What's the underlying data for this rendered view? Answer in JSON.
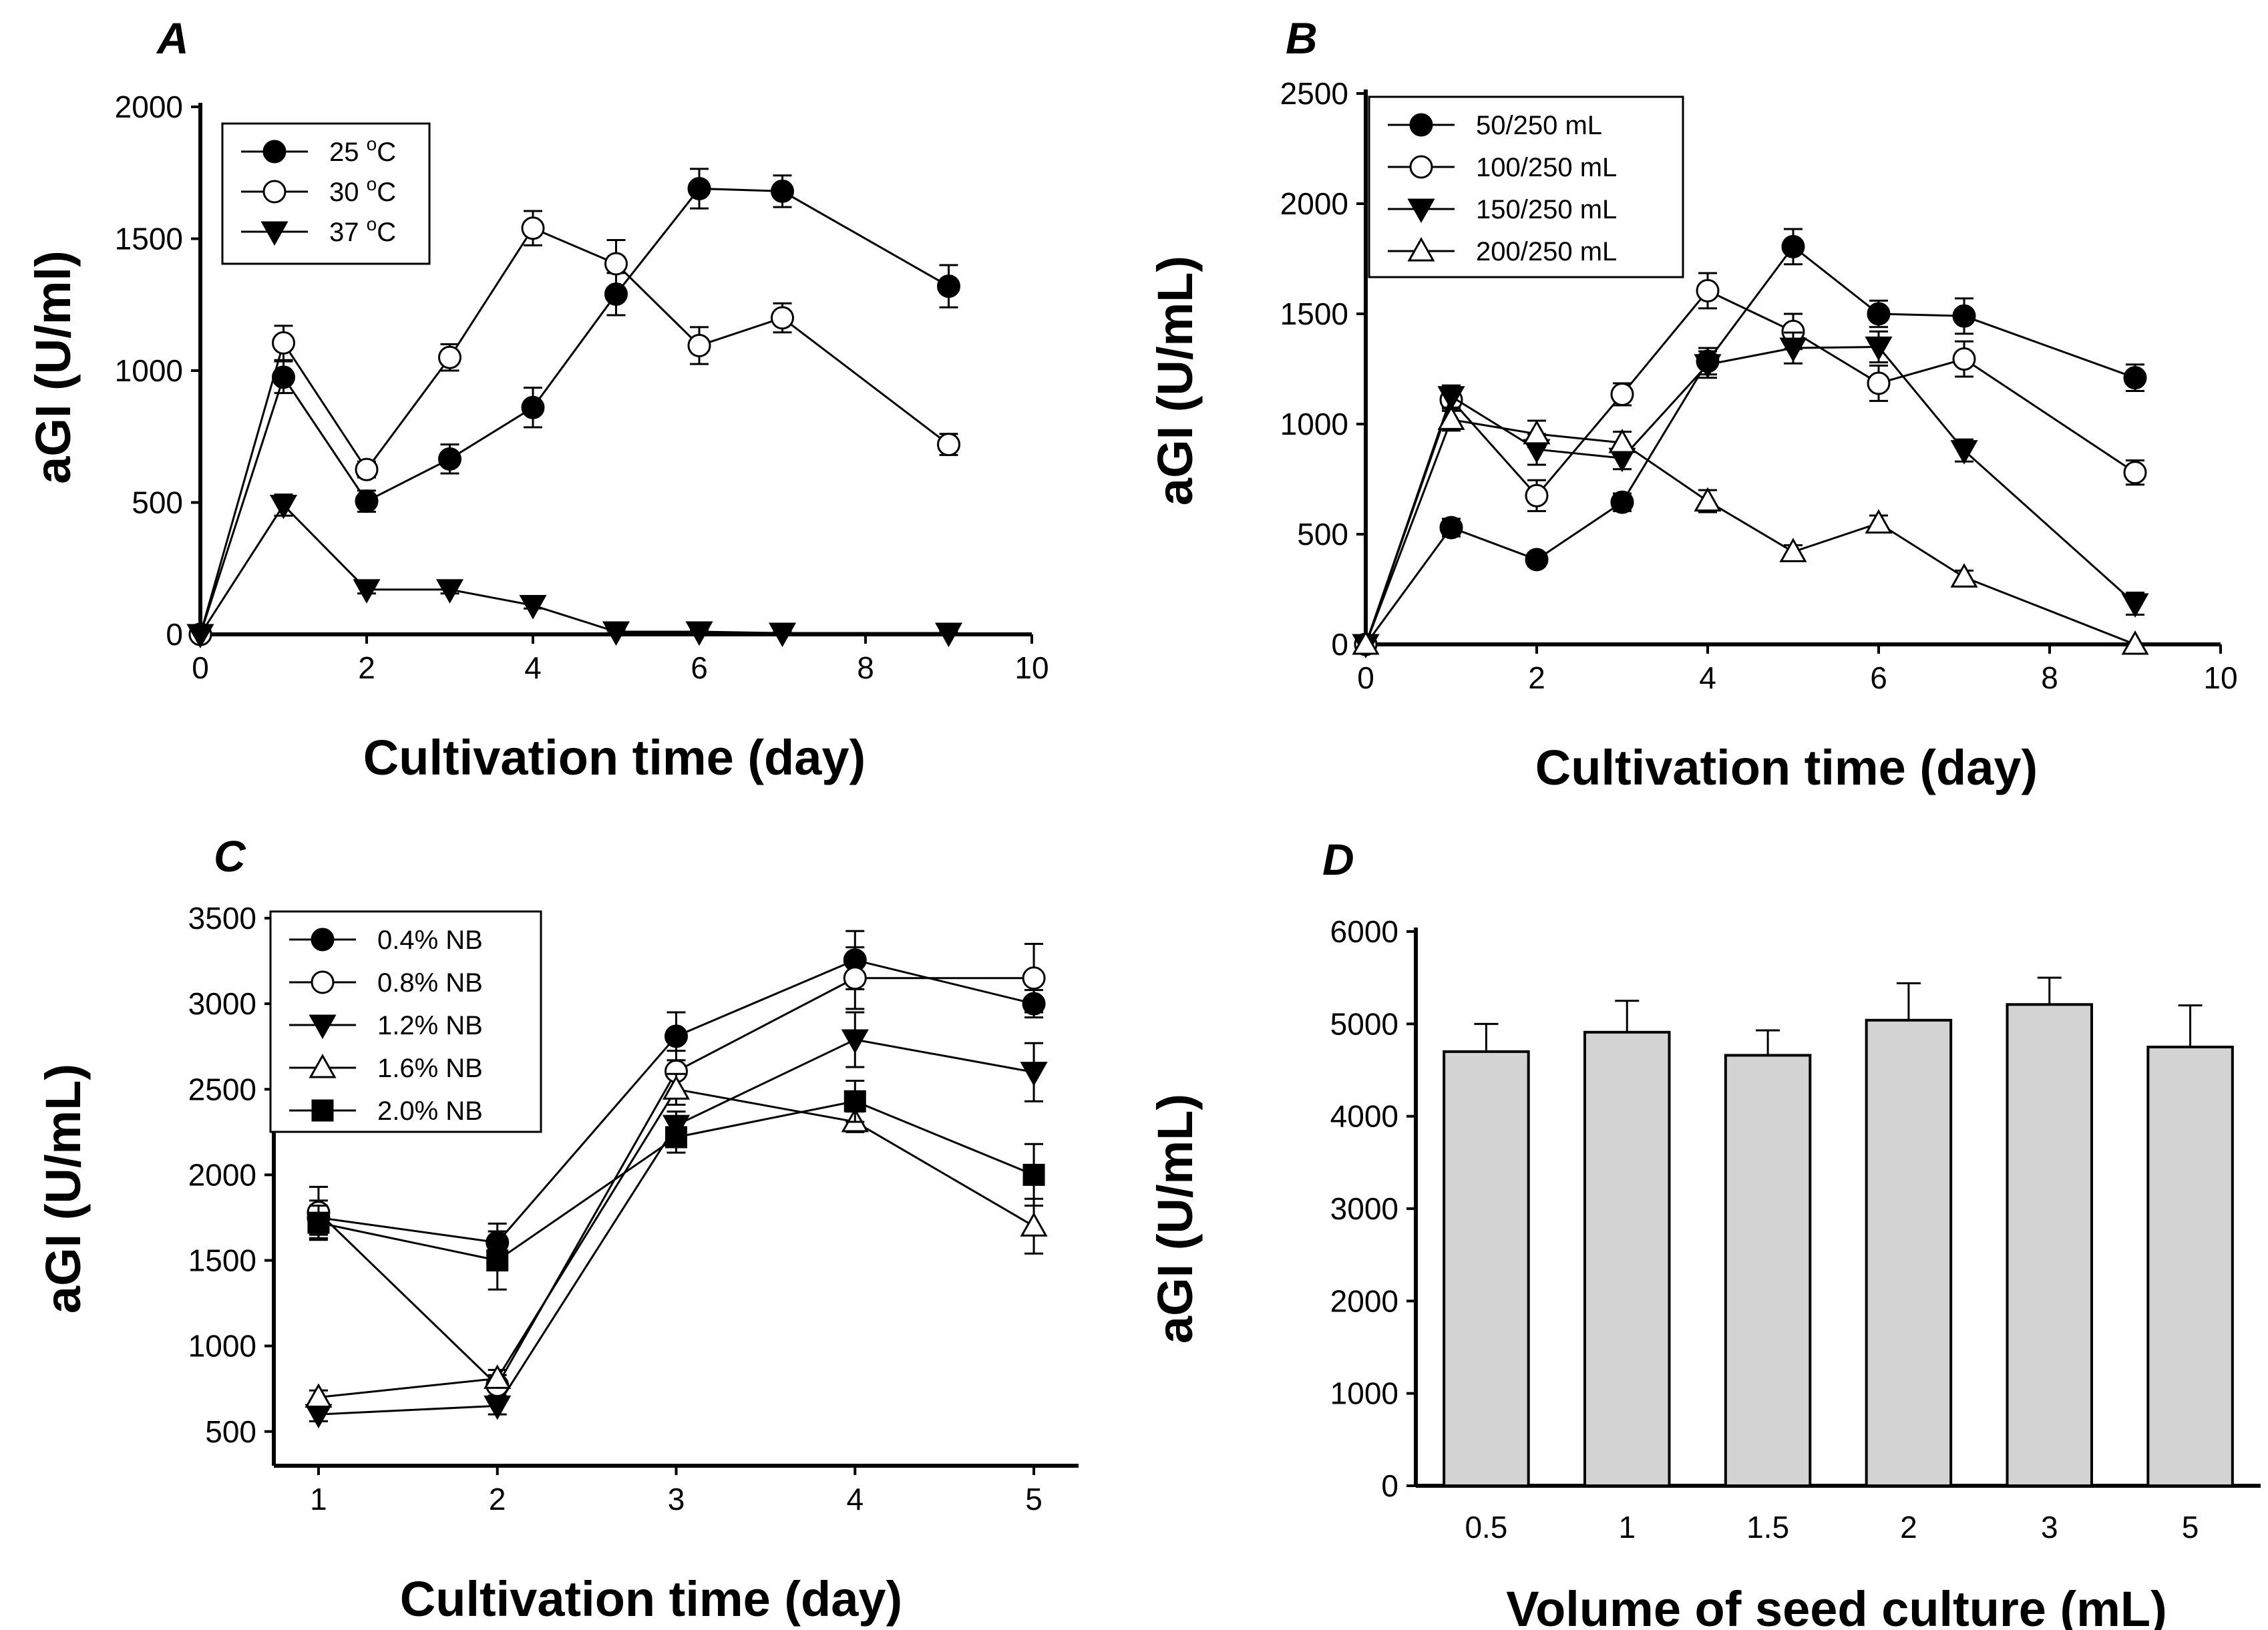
{
  "chart_data": [
    {
      "panel": "A",
      "type": "line",
      "xlabel": "Cultivation time (day)",
      "ylabel": "aGI (U/ml)",
      "xlim": [
        0,
        10
      ],
      "ylim": [
        0,
        2000
      ],
      "xticks": [
        0,
        2,
        4,
        6,
        8,
        10
      ],
      "yticks": [
        0,
        500,
        1000,
        1500,
        2000
      ],
      "legend_position": "top-left",
      "series": [
        {
          "name": "25 °C",
          "label_main": "25 ",
          "label_sup": "o",
          "label_tail": "C",
          "marker": "circle-filled",
          "x": [
            0,
            1,
            2,
            3,
            4,
            5,
            6,
            7,
            9
          ],
          "y": [
            0,
            975,
            505,
            665,
            860,
            1290,
            1690,
            1680,
            1320
          ],
          "err": [
            0,
            60,
            40,
            55,
            75,
            80,
            75,
            60,
            80
          ]
        },
        {
          "name": "30 °C",
          "label_main": "30 ",
          "label_sup": "o",
          "label_tail": "C",
          "marker": "circle-open",
          "x": [
            0,
            1,
            2,
            3,
            4,
            5,
            6,
            7,
            9
          ],
          "y": [
            0,
            1105,
            625,
            1050,
            1540,
            1405,
            1095,
            1200,
            720
          ],
          "err": [
            0,
            65,
            30,
            50,
            65,
            90,
            70,
            55,
            40
          ]
        },
        {
          "name": "37 °C",
          "label_main": "37 ",
          "label_sup": "o",
          "label_tail": "C",
          "marker": "triangle-down-filled",
          "x": [
            0,
            1,
            2,
            3,
            4,
            5,
            6,
            7,
            9
          ],
          "y": [
            0,
            490,
            170,
            170,
            110,
            10,
            10,
            5,
            5
          ],
          "err": [
            0,
            40,
            15,
            15,
            12,
            5,
            5,
            5,
            5
          ]
        }
      ]
    },
    {
      "panel": "B",
      "type": "line",
      "xlabel": "Cultivation time (day)",
      "ylabel": "aGI (U/mL)",
      "xlim": [
        0,
        10
      ],
      "ylim": [
        0,
        2500
      ],
      "xticks": [
        0,
        2,
        4,
        6,
        8,
        10
      ],
      "yticks": [
        0,
        500,
        1000,
        1500,
        2000,
        2500
      ],
      "legend_position": "top-left",
      "series": [
        {
          "name": "50/250 mL",
          "label_main": "50/250 mL",
          "marker": "circle-filled",
          "x": [
            0,
            1,
            2,
            3,
            4,
            5,
            6,
            7,
            9
          ],
          "y": [
            0,
            530,
            385,
            645,
            1285,
            1805,
            1500,
            1490,
            1210
          ],
          "err": [
            0,
            40,
            30,
            40,
            60,
            80,
            60,
            80,
            60
          ]
        },
        {
          "name": "100/250 mL",
          "label_main": "100/250 mL",
          "marker": "circle-open",
          "x": [
            0,
            1,
            2,
            3,
            4,
            5,
            6,
            7,
            9
          ],
          "y": [
            0,
            1110,
            675,
            1135,
            1605,
            1420,
            1185,
            1295,
            780
          ],
          "err": [
            0,
            50,
            70,
            50,
            80,
            80,
            80,
            80,
            55
          ]
        },
        {
          "name": "150/250 mL",
          "label_main": "150/250 mL",
          "marker": "triangle-down-filled",
          "x": [
            0,
            1,
            2,
            3,
            4,
            5,
            6,
            7,
            9
          ],
          "y": [
            0,
            1125,
            885,
            845,
            1270,
            1345,
            1350,
            880,
            185
          ],
          "err": [
            0,
            50,
            70,
            50,
            60,
            70,
            70,
            50,
            50
          ]
        },
        {
          "name": "200/250 mL",
          "label_main": "200/250 mL",
          "marker": "triangle-up-open",
          "x": [
            0,
            1,
            2,
            3,
            4,
            5,
            6,
            7,
            9
          ],
          "y": [
            0,
            1020,
            955,
            915,
            650,
            420,
            550,
            305,
            0
          ],
          "err": [
            0,
            50,
            60,
            50,
            50,
            30,
            35,
            30,
            0
          ]
        }
      ]
    },
    {
      "panel": "C",
      "type": "line",
      "xlabel": "Cultivation time (day)",
      "ylabel": "aGI (U/mL)",
      "xlim": [
        0.75,
        5.25
      ],
      "ylim": [
        300,
        3500
      ],
      "xticks": [
        1,
        2,
        3,
        4,
        5
      ],
      "yticks": [
        500,
        1000,
        1500,
        2000,
        2500,
        3000,
        3500
      ],
      "legend_position": "top-left",
      "series": [
        {
          "name": "0.4% NB",
          "label_main": "0.4% NB",
          "marker": "circle-filled",
          "x": [
            1,
            2,
            3,
            4,
            5
          ],
          "y": [
            1750,
            1605,
            2810,
            3255,
            3000
          ],
          "err": [
            100,
            110,
            140,
            170,
            80
          ]
        },
        {
          "name": "0.8% NB",
          "label_main": "0.8% NB",
          "marker": "circle-open",
          "x": [
            1,
            2,
            3,
            4,
            5
          ],
          "y": [
            1780,
            770,
            2605,
            3150,
            3150
          ],
          "err": [
            150,
            60,
            120,
            180,
            200
          ]
        },
        {
          "name": "1.2% NB",
          "label_main": "1.2% NB",
          "marker": "triangle-down-filled",
          "x": [
            1,
            2,
            3,
            4,
            5
          ],
          "y": [
            600,
            650,
            2290,
            2790,
            2600
          ],
          "err": [
            40,
            50,
            80,
            160,
            170
          ]
        },
        {
          "name": "1.6% NB",
          "label_main": "1.6% NB",
          "marker": "triangle-up-open",
          "x": [
            1,
            2,
            3,
            4,
            5
          ],
          "y": [
            700,
            810,
            2500,
            2310,
            1700
          ],
          "err": [
            40,
            50,
            90,
            60,
            160
          ]
        },
        {
          "name": "2.0% NB",
          "label_main": "2.0% NB",
          "marker": "square-filled",
          "x": [
            1,
            2,
            3,
            4,
            5
          ],
          "y": [
            1720,
            1500,
            2220,
            2430,
            2000
          ],
          "err": [
            100,
            170,
            90,
            120,
            180
          ]
        }
      ]
    },
    {
      "panel": "D",
      "type": "bar",
      "xlabel": "Volume of seed culture (mL)",
      "ylabel": "aGI (U/mL)",
      "ylim": [
        0,
        6000
      ],
      "yticks": [
        0,
        1000,
        2000,
        3000,
        4000,
        5000,
        6000
      ],
      "categories": [
        "0.5",
        "1",
        "1.5",
        "2",
        "3",
        "5"
      ],
      "values": [
        4700,
        4910,
        4660,
        5040,
        5210,
        4750
      ],
      "err": [
        300,
        340,
        270,
        400,
        290,
        450
      ]
    }
  ]
}
